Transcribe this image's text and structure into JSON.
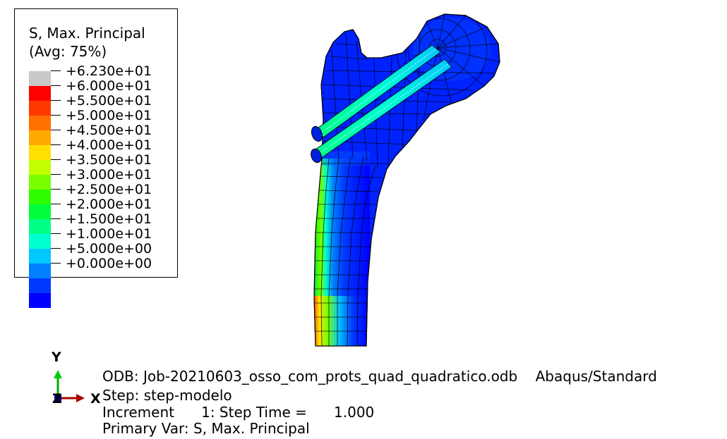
{
  "legend": {
    "title_line1": "S, Max. Principal",
    "title_line2": "(Avg: 75%)",
    "ticks": [
      "+6.230e+01",
      "+6.000e+01",
      "+5.500e+01",
      "+5.000e+01",
      "+4.500e+01",
      "+4.000e+01",
      "+3.500e+01",
      "+3.000e+01",
      "+2.500e+01",
      "+2.000e+01",
      "+1.500e+01",
      "+1.000e+01",
      "+5.000e+00",
      "+0.000e+00"
    ],
    "colors": [
      "#c8c8c8",
      "#ff0000",
      "#ff3800",
      "#ff7000",
      "#ffa800",
      "#ffe000",
      "#c4ff00",
      "#7aff00",
      "#2eff00",
      "#00ff3a",
      "#00ff86",
      "#00ffd0",
      "#00c8ff",
      "#0080ff",
      "#0038ff",
      "#0000ff"
    ]
  },
  "triad": {
    "y_label": "Y",
    "x_label": "X",
    "z_label": "Z"
  },
  "info": {
    "odb_line": "ODB: Job-20210603_osso_com_prots_quad_quadratico.odb    Abaqus/Standard",
    "step_line": "Step: step-modelo",
    "increment_line": "Increment      1: Step Time =      1.000",
    "primary_var_line": "Primary Var: S, Max. Principal"
  }
}
